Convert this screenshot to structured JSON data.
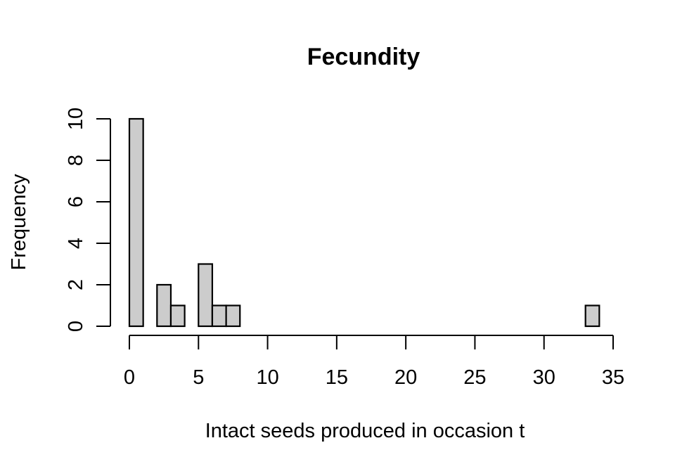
{
  "chart_data": {
    "type": "bar",
    "subtype": "histogram",
    "title": "Fecundity",
    "xlabel": "Intact seeds produced in occasion t",
    "ylabel": "Frequency",
    "bin_width": 1,
    "bins": [
      {
        "start": 0,
        "end": 1,
        "count": 10
      },
      {
        "start": 1,
        "end": 2,
        "count": 0
      },
      {
        "start": 2,
        "end": 3,
        "count": 2
      },
      {
        "start": 3,
        "end": 4,
        "count": 1
      },
      {
        "start": 4,
        "end": 5,
        "count": 0
      },
      {
        "start": 5,
        "end": 6,
        "count": 3
      },
      {
        "start": 6,
        "end": 7,
        "count": 1
      },
      {
        "start": 7,
        "end": 8,
        "count": 1
      },
      {
        "start": 8,
        "end": 9,
        "count": 0
      },
      {
        "start": 9,
        "end": 10,
        "count": 0
      },
      {
        "start": 10,
        "end": 11,
        "count": 0
      },
      {
        "start": 11,
        "end": 12,
        "count": 0
      },
      {
        "start": 12,
        "end": 13,
        "count": 0
      },
      {
        "start": 13,
        "end": 14,
        "count": 0
      },
      {
        "start": 14,
        "end": 15,
        "count": 0
      },
      {
        "start": 15,
        "end": 16,
        "count": 0
      },
      {
        "start": 16,
        "end": 17,
        "count": 0
      },
      {
        "start": 17,
        "end": 18,
        "count": 0
      },
      {
        "start": 18,
        "end": 19,
        "count": 0
      },
      {
        "start": 19,
        "end": 20,
        "count": 0
      },
      {
        "start": 20,
        "end": 21,
        "count": 0
      },
      {
        "start": 21,
        "end": 22,
        "count": 0
      },
      {
        "start": 22,
        "end": 23,
        "count": 0
      },
      {
        "start": 23,
        "end": 24,
        "count": 0
      },
      {
        "start": 24,
        "end": 25,
        "count": 0
      },
      {
        "start": 25,
        "end": 26,
        "count": 0
      },
      {
        "start": 26,
        "end": 27,
        "count": 0
      },
      {
        "start": 27,
        "end": 28,
        "count": 0
      },
      {
        "start": 28,
        "end": 29,
        "count": 0
      },
      {
        "start": 29,
        "end": 30,
        "count": 0
      },
      {
        "start": 30,
        "end": 31,
        "count": 0
      },
      {
        "start": 31,
        "end": 32,
        "count": 0
      },
      {
        "start": 32,
        "end": 33,
        "count": 0
      },
      {
        "start": 33,
        "end": 34,
        "count": 1
      }
    ],
    "categories": [
      "0-1",
      "1-2",
      "2-3",
      "3-4",
      "4-5",
      "5-6",
      "6-7",
      "7-8",
      "8-9",
      "9-10",
      "10-11",
      "11-12",
      "12-13",
      "13-14",
      "14-15",
      "15-16",
      "16-17",
      "17-18",
      "18-19",
      "19-20",
      "20-21",
      "21-22",
      "22-23",
      "23-24",
      "24-25",
      "25-26",
      "26-27",
      "27-28",
      "28-29",
      "29-30",
      "30-31",
      "31-32",
      "32-33",
      "33-34"
    ],
    "values": [
      10,
      0,
      2,
      1,
      0,
      3,
      1,
      1,
      0,
      0,
      0,
      0,
      0,
      0,
      0,
      0,
      0,
      0,
      0,
      0,
      0,
      0,
      0,
      0,
      0,
      0,
      0,
      0,
      0,
      0,
      0,
      0,
      0,
      1
    ],
    "xticks": [
      0,
      5,
      10,
      15,
      20,
      25,
      30,
      35
    ],
    "yticks": [
      0,
      2,
      4,
      6,
      8,
      10
    ],
    "xlim": [
      0,
      35
    ],
    "ylim": [
      0,
      10
    ],
    "grid": false,
    "legend": null,
    "colors": {
      "bar_fill": "#cccccc",
      "bar_stroke": "#000000",
      "axis": "#000000"
    }
  }
}
